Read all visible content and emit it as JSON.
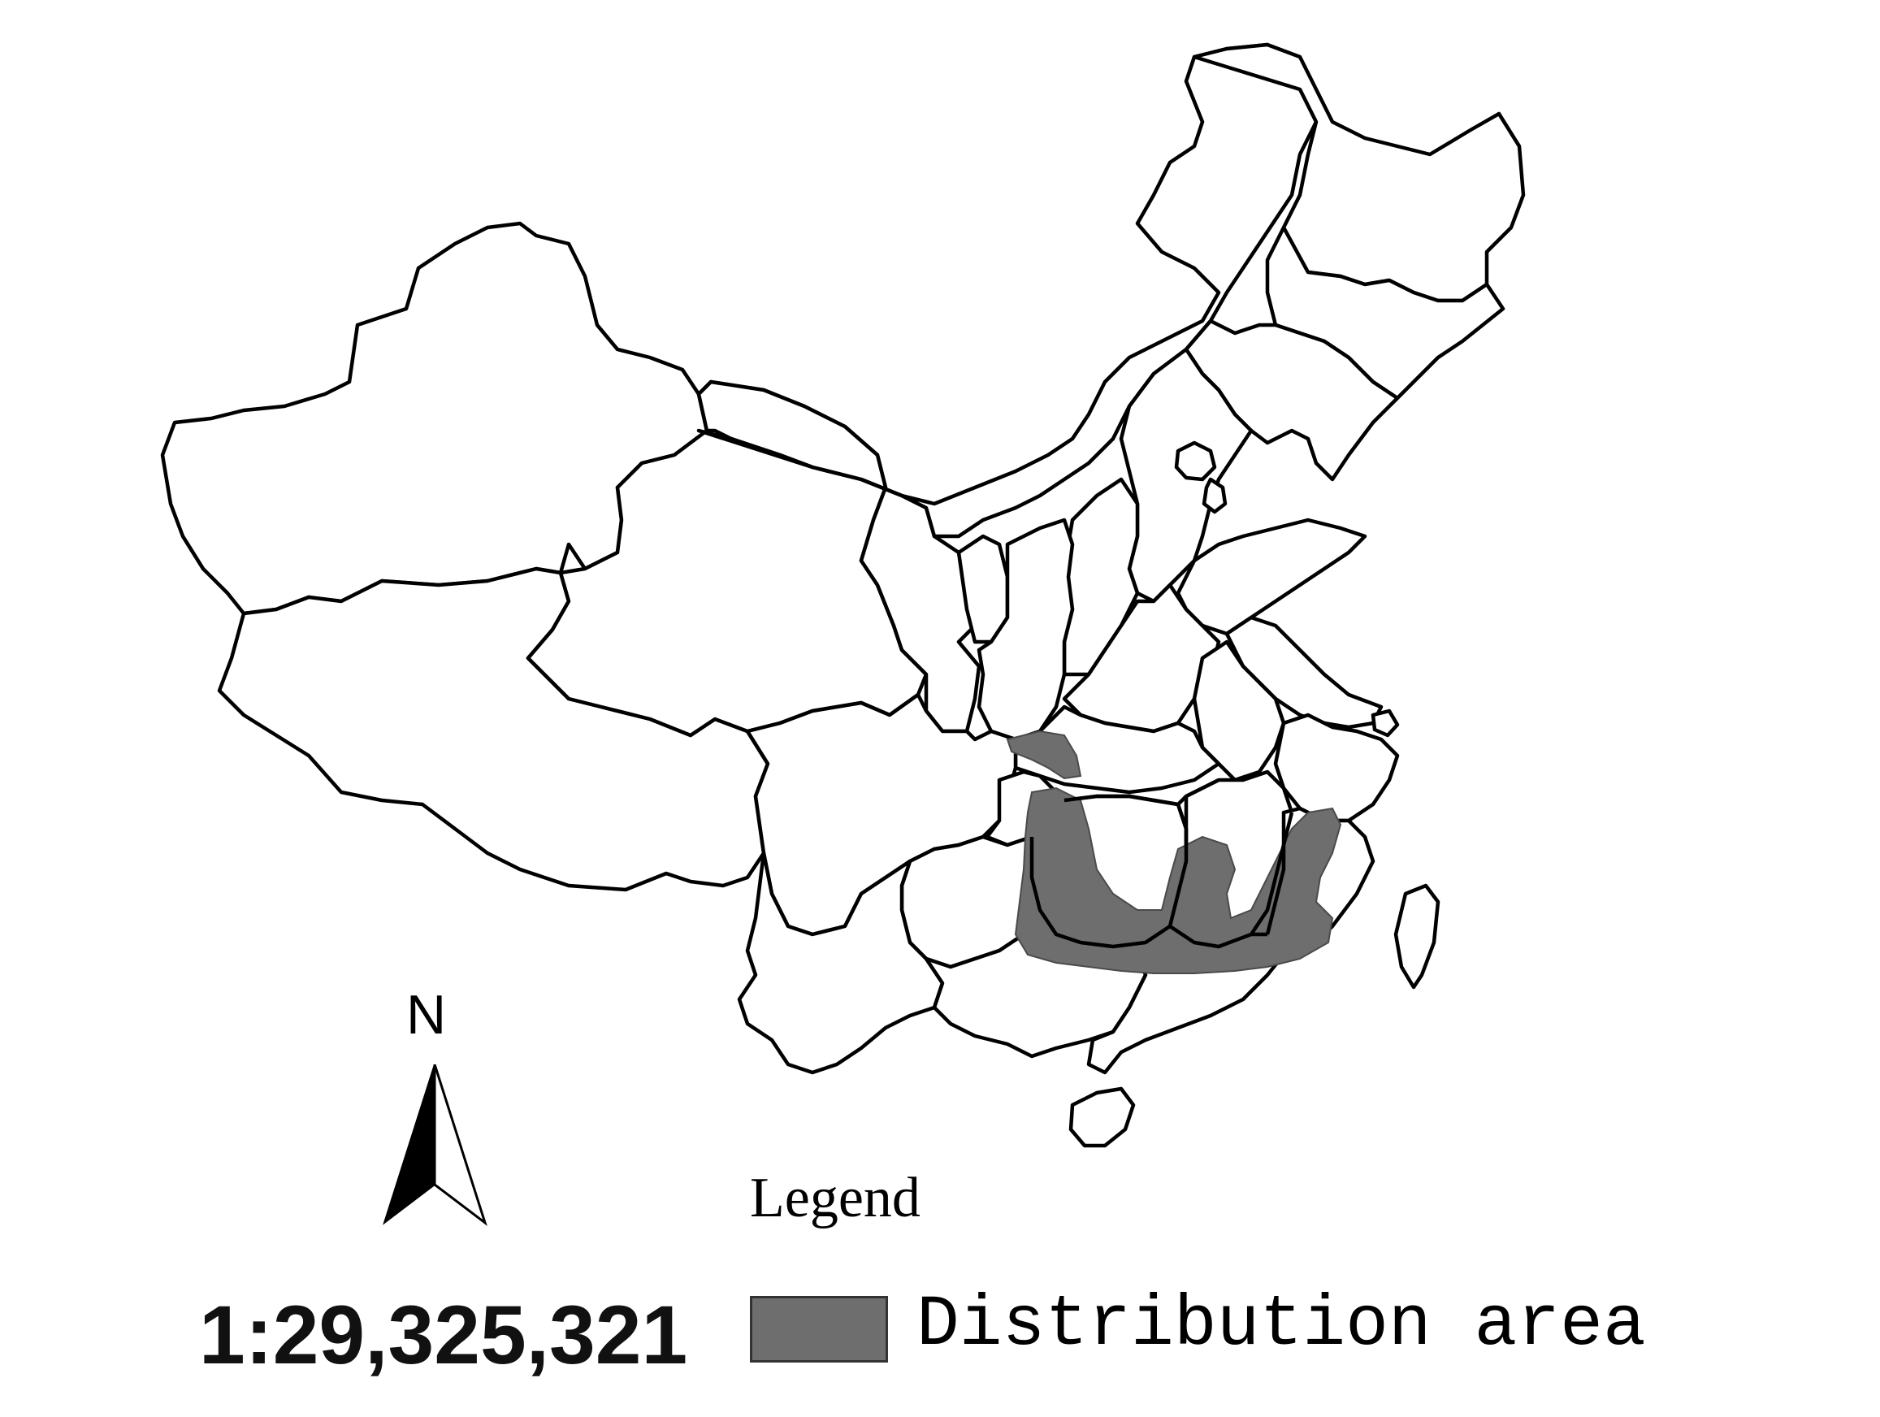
{
  "map": {
    "compass": {
      "label": "N",
      "icon": "north-arrow-icon"
    },
    "scale": {
      "text": "1:29,325,321"
    },
    "legend": {
      "title": "Legend",
      "items": [
        {
          "label": "Distribution area",
          "color": "#6e6e6e"
        }
      ]
    },
    "colors": {
      "boundary": "#000000",
      "distribution": "#6e6e6e",
      "background": "#ffffff"
    }
  }
}
